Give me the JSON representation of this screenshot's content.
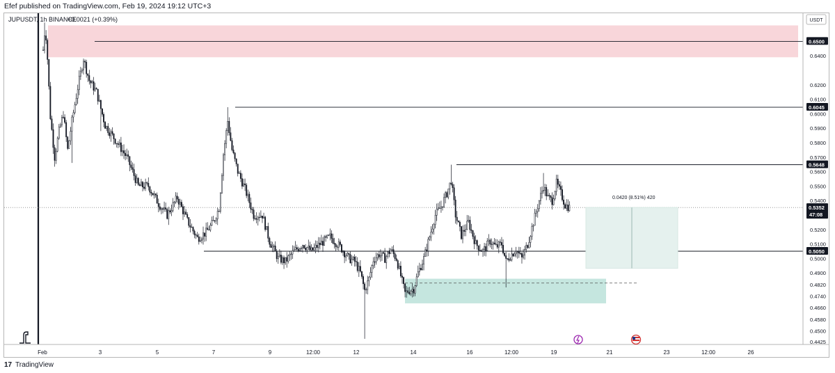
{
  "header": {
    "publisher_line": "Efef published on TradingView.com, Feb 19, 2024 19:12 UTC+3"
  },
  "legend": {
    "symbol": "JUPUSDT, 1h BINANCE",
    "change": "+0.0021 (+0.39%)"
  },
  "currency_label": "USDT",
  "footer": {
    "logo_glyph": "17",
    "brand": "TradingView"
  },
  "colors": {
    "up": "#131722",
    "down": "#131722",
    "supply_zone": "#f7cfd4",
    "demand_zone": "#bfe3dc",
    "measure_box": "#e5f1ee"
  },
  "chart_data": {
    "type": "candlestick",
    "symbol": "JUPUSDT",
    "interval": "1h",
    "exchange": "BINANCE",
    "ylim": [
      0.4425,
      0.6675
    ],
    "y_ticks": [
      0.64,
      0.62,
      0.61,
      0.6,
      0.59,
      0.58,
      0.57,
      0.56,
      0.55,
      0.54,
      0.52,
      0.51,
      0.5,
      0.49,
      0.482,
      0.474,
      0.466,
      0.458,
      0.45,
      0.4425
    ],
    "x_ticks": [
      "Feb",
      "3",
      "5",
      "7",
      "9",
      "12:00",
      "12",
      "14",
      "16",
      "12:00",
      "19",
      "21",
      "23",
      "12:00",
      "26"
    ],
    "price_labels": [
      {
        "label": "0.6500",
        "value": 0.65
      },
      {
        "label": "0.6045",
        "value": 0.6045
      },
      {
        "label": "0.5648",
        "value": 0.5648
      },
      {
        "label": "0.5352",
        "value": 0.5352,
        "sub": "47:08"
      },
      {
        "label": "0.5050",
        "value": 0.505
      }
    ],
    "anchor_path": [
      {
        "t": 0,
        "p": 0.644
      },
      {
        "t": 3,
        "p": 0.661
      },
      {
        "t": 6,
        "p": 0.638
      },
      {
        "t": 10,
        "p": 0.598
      },
      {
        "t": 16,
        "p": 0.57
      },
      {
        "t": 22,
        "p": 0.588
      },
      {
        "t": 28,
        "p": 0.6
      },
      {
        "t": 34,
        "p": 0.575
      },
      {
        "t": 40,
        "p": 0.595
      },
      {
        "t": 48,
        "p": 0.618
      },
      {
        "t": 56,
        "p": 0.638
      },
      {
        "t": 64,
        "p": 0.623
      },
      {
        "t": 74,
        "p": 0.615
      },
      {
        "t": 86,
        "p": 0.592
      },
      {
        "t": 100,
        "p": 0.582
      },
      {
        "t": 116,
        "p": 0.57
      },
      {
        "t": 132,
        "p": 0.55
      },
      {
        "t": 146,
        "p": 0.55
      },
      {
        "t": 160,
        "p": 0.538
      },
      {
        "t": 172,
        "p": 0.53
      },
      {
        "t": 186,
        "p": 0.542
      },
      {
        "t": 200,
        "p": 0.526
      },
      {
        "t": 214,
        "p": 0.514
      },
      {
        "t": 226,
        "p": 0.518
      },
      {
        "t": 236,
        "p": 0.525
      },
      {
        "t": 244,
        "p": 0.535
      },
      {
        "t": 250,
        "p": 0.572
      },
      {
        "t": 256,
        "p": 0.595
      },
      {
        "t": 262,
        "p": 0.575
      },
      {
        "t": 270,
        "p": 0.56
      },
      {
        "t": 280,
        "p": 0.548
      },
      {
        "t": 292,
        "p": 0.53
      },
      {
        "t": 304,
        "p": 0.53
      },
      {
        "t": 314,
        "p": 0.512
      },
      {
        "t": 326,
        "p": 0.5
      },
      {
        "t": 336,
        "p": 0.498
      },
      {
        "t": 348,
        "p": 0.505
      },
      {
        "t": 360,
        "p": 0.51
      },
      {
        "t": 372,
        "p": 0.505
      },
      {
        "t": 384,
        "p": 0.51
      },
      {
        "t": 398,
        "p": 0.515
      },
      {
        "t": 412,
        "p": 0.508
      },
      {
        "t": 424,
        "p": 0.5
      },
      {
        "t": 432,
        "p": 0.498
      },
      {
        "t": 440,
        "p": 0.49
      },
      {
        "t": 446,
        "p": 0.478
      },
      {
        "t": 452,
        "p": 0.486
      },
      {
        "t": 458,
        "p": 0.499
      },
      {
        "t": 466,
        "p": 0.503
      },
      {
        "t": 474,
        "p": 0.5
      },
      {
        "t": 482,
        "p": 0.506
      },
      {
        "t": 490,
        "p": 0.5
      },
      {
        "t": 496,
        "p": 0.488
      },
      {
        "t": 502,
        "p": 0.476
      },
      {
        "t": 508,
        "p": 0.478
      },
      {
        "t": 514,
        "p": 0.479
      },
      {
        "t": 520,
        "p": 0.49
      },
      {
        "t": 528,
        "p": 0.5
      },
      {
        "t": 536,
        "p": 0.515
      },
      {
        "t": 544,
        "p": 0.53
      },
      {
        "t": 552,
        "p": 0.536
      },
      {
        "t": 560,
        "p": 0.545
      },
      {
        "t": 566,
        "p": 0.554
      },
      {
        "t": 572,
        "p": 0.53
      },
      {
        "t": 580,
        "p": 0.516
      },
      {
        "t": 590,
        "p": 0.525
      },
      {
        "t": 600,
        "p": 0.51
      },
      {
        "t": 610,
        "p": 0.505
      },
      {
        "t": 620,
        "p": 0.512
      },
      {
        "t": 628,
        "p": 0.508
      },
      {
        "t": 636,
        "p": 0.51
      },
      {
        "t": 642,
        "p": 0.498
      },
      {
        "t": 648,
        "p": 0.502
      },
      {
        "t": 656,
        "p": 0.506
      },
      {
        "t": 664,
        "p": 0.5
      },
      {
        "t": 672,
        "p": 0.51
      },
      {
        "t": 680,
        "p": 0.525
      },
      {
        "t": 688,
        "p": 0.54
      },
      {
        "t": 694,
        "p": 0.55
      },
      {
        "t": 700,
        "p": 0.542
      },
      {
        "t": 706,
        "p": 0.54
      },
      {
        "t": 712,
        "p": 0.552
      },
      {
        "t": 718,
        "p": 0.545
      },
      {
        "t": 724,
        "p": 0.537
      },
      {
        "t": 730,
        "p": 0.5352
      }
    ],
    "t_range": [
      0,
      1108
    ],
    "key_levels": [
      {
        "price": 0.65
      },
      {
        "price": 0.6045
      },
      {
        "price": 0.5648
      },
      {
        "price": 0.505
      }
    ],
    "zones": [
      {
        "name": "supply",
        "p_top": 0.661,
        "p_bottom": 0.639
      },
      {
        "name": "demand",
        "p_top": 0.486,
        "p_bottom": 0.469
      }
    ],
    "dashed_level": 0.483,
    "measure": {
      "label": "0.0420 (8.51%) 420",
      "p_top": 0.5352,
      "p_bottom": 0.4932
    },
    "current_price": 0.5352
  }
}
